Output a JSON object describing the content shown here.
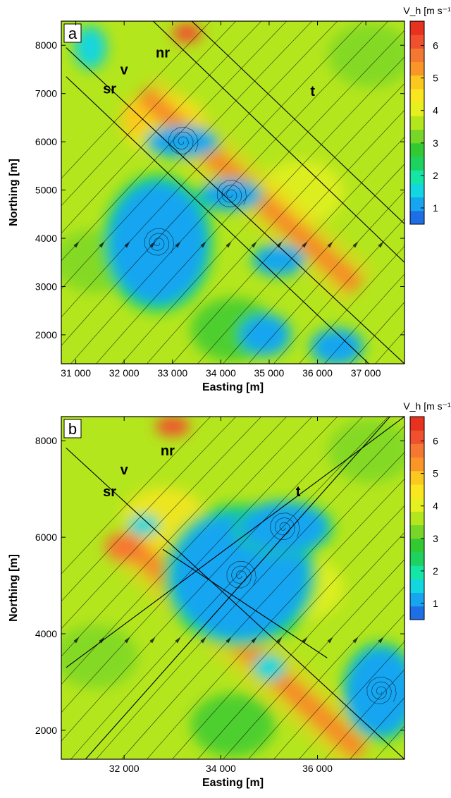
{
  "chart_data": [
    {
      "type": "heatmap",
      "panel_label": "a",
      "xlabel": "Easting [m]",
      "ylabel": "Northing [m]",
      "xlim": [
        30700,
        37800
      ],
      "ylim": [
        1400,
        8500
      ],
      "xticks": [
        31000,
        32000,
        33000,
        34000,
        35000,
        36000,
        37000
      ],
      "xtick_labels": [
        "31 000",
        "32 000",
        "33 000",
        "34 000",
        "35 000",
        "36 000",
        "37 000"
      ],
      "yticks": [
        2000,
        3000,
        4000,
        5000,
        6000,
        7000,
        8000
      ],
      "ytick_labels": [
        "2000",
        "3000",
        "4000",
        "5000",
        "6000",
        "7000",
        "8000"
      ],
      "colorbar": {
        "title": "V_h [m s⁻¹]",
        "min": 0.5,
        "max": 6.75,
        "ticks": [
          1,
          2,
          3,
          4,
          5,
          6
        ],
        "colors": [
          "#1e6ee6",
          "#17a5f0",
          "#14d6e0",
          "#14e6a5",
          "#1ed25f",
          "#33c933",
          "#78d628",
          "#b4e61e",
          "#e6f01e",
          "#fae61e",
          "#fac81e",
          "#fa9628",
          "#f57832",
          "#f0502d",
          "#e6321e"
        ]
      },
      "annotations": [
        {
          "text": "nr",
          "x": 32800,
          "y": 7750
        },
        {
          "text": "v",
          "x": 32000,
          "y": 7400
        },
        {
          "text": "sr",
          "x": 31700,
          "y": 7000
        },
        {
          "text": "t",
          "x": 35900,
          "y": 6950
        }
      ],
      "line_series": [
        {
          "x": [
            30800,
            37800
          ],
          "y": [
            7950,
            1400
          ]
        },
        {
          "x": [
            30800,
            37800
          ],
          "y": [
            7350,
            700
          ]
        },
        {
          "x": [
            33400,
            37800
          ],
          "y": [
            8500,
            4300
          ]
        },
        {
          "x": [
            32600,
            37800
          ],
          "y": [
            8500,
            3500
          ]
        }
      ],
      "regions_low_speed": [
        {
          "cx": 32700,
          "cy": 3900,
          "rx": 1000,
          "ry": 1250,
          "value": 1.0
        },
        {
          "cx": 33200,
          "cy": 6000,
          "rx": 700,
          "ry": 300,
          "value": 1.0
        },
        {
          "cx": 34200,
          "cy": 4900,
          "rx": 600,
          "ry": 300,
          "value": 1.2
        },
        {
          "cx": 35200,
          "cy": 3550,
          "rx": 500,
          "ry": 300,
          "value": 1.0
        },
        {
          "cx": 34900,
          "cy": 2000,
          "rx": 500,
          "ry": 400,
          "value": 1.0
        },
        {
          "cx": 36400,
          "cy": 1750,
          "rx": 500,
          "ry": 350,
          "value": 1.0
        },
        {
          "cx": 31300,
          "cy": 7950,
          "rx": 300,
          "ry": 400,
          "value": 1.5
        }
      ],
      "regions_high_speed": [
        {
          "cx": 34600,
          "cy": 5000,
          "length": 6000,
          "width": 400,
          "angle": 42,
          "value": 6.0
        },
        {
          "cx": 32200,
          "cy": 6500,
          "rx": 250,
          "ry": 400,
          "value": 5.0
        },
        {
          "cx": 33300,
          "cy": 8250,
          "rx": 300,
          "ry": 200,
          "value": 6.0
        }
      ]
    },
    {
      "type": "heatmap",
      "panel_label": "b",
      "xlabel": "Easting [m]",
      "ylabel": "Northing [m]",
      "xlim": [
        30700,
        37800
      ],
      "ylim": [
        1400,
        8500
      ],
      "xticks": [
        32000,
        34000,
        36000
      ],
      "xtick_labels": [
        "32 000",
        "34 000",
        "36 000"
      ],
      "yticks": [
        2000,
        4000,
        6000,
        8000
      ],
      "ytick_labels": [
        "2000",
        "4000",
        "6000",
        "8000"
      ],
      "colorbar": {
        "title": "V_h [m s⁻¹]",
        "min": 0.5,
        "max": 6.75,
        "ticks": [
          1,
          2,
          3,
          4,
          5,
          6
        ],
        "colors": [
          "#1e6ee6",
          "#17a5f0",
          "#14d6e0",
          "#14e6a5",
          "#1ed25f",
          "#33c933",
          "#78d628",
          "#b4e61e",
          "#e6f01e",
          "#fae61e",
          "#fac81e",
          "#fa9628",
          "#f57832",
          "#f0502d",
          "#e6321e"
        ]
      },
      "annotations": [
        {
          "text": "nr",
          "x": 32900,
          "y": 7700
        },
        {
          "text": "v",
          "x": 32000,
          "y": 7300
        },
        {
          "text": "sr",
          "x": 31700,
          "y": 6850
        },
        {
          "text": "t",
          "x": 35600,
          "y": 6850
        }
      ],
      "line_series": [
        {
          "x": [
            30800,
            37800
          ],
          "y": [
            7850,
            1400
          ]
        },
        {
          "x": [
            30800,
            37800
          ],
          "y": [
            3300,
            8500
          ]
        },
        {
          "x": [
            31200,
            37500
          ],
          "y": [
            1400,
            8500
          ]
        },
        {
          "x": [
            32800,
            36200
          ],
          "y": [
            5750,
            3500
          ]
        }
      ],
      "regions_low_speed": [
        {
          "cx": 34400,
          "cy": 5200,
          "rx": 1400,
          "ry": 1300,
          "value": 1.0
        },
        {
          "cx": 35300,
          "cy": 6200,
          "rx": 900,
          "ry": 500,
          "value": 1.0
        },
        {
          "cx": 37300,
          "cy": 2800,
          "rx": 700,
          "ry": 900,
          "value": 1.0
        },
        {
          "cx": 35000,
          "cy": 3300,
          "rx": 300,
          "ry": 250,
          "value": 1.5
        },
        {
          "cx": 32400,
          "cy": 6250,
          "rx": 300,
          "ry": 200,
          "value": 1.5
        }
      ],
      "regions_high_speed": [
        {
          "cx": 34500,
          "cy": 3700,
          "length": 6500,
          "width": 420,
          "angle": 42,
          "value": 6.0
        },
        {
          "cx": 32000,
          "cy": 5800,
          "rx": 400,
          "ry": 300,
          "value": 5.5
        },
        {
          "cx": 33000,
          "cy": 8300,
          "rx": 350,
          "ry": 200,
          "value": 6.0
        }
      ]
    }
  ]
}
